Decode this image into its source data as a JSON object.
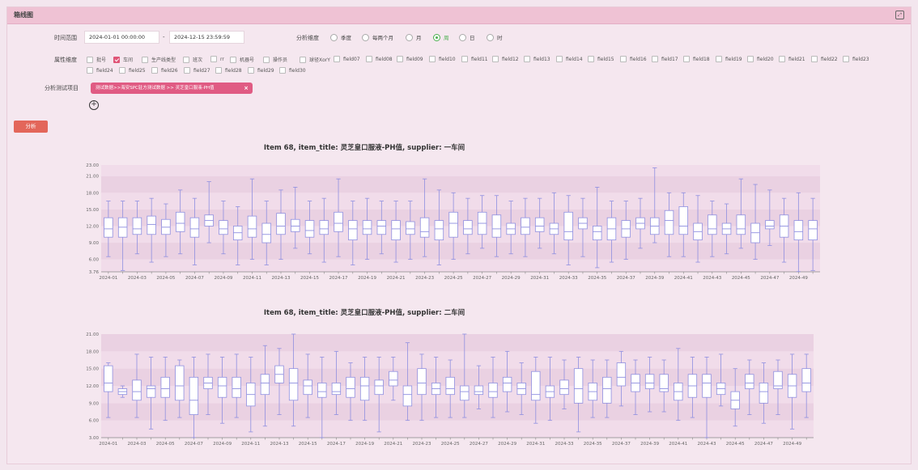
{
  "header": {
    "title": "箱线图",
    "expand_icon": "expand-icon"
  },
  "form": {
    "time_label": "时间范围",
    "start_time": "2024-01-01 00:00:00",
    "separator": "-",
    "end_time": "2024-12-15 23:59:59",
    "dimension_label": "分析维度",
    "dimensions": [
      "季度",
      "每两个月",
      "月",
      "周",
      "日",
      "时"
    ],
    "selected_dimension": "周",
    "attr_label": "属性维度",
    "attributes": [
      "批号",
      "车间",
      "生产线类型",
      "班次",
      "rr",
      "机器号",
      "操作员",
      "球径XorY",
      "field07",
      "field08",
      "field09",
      "field10",
      "field11",
      "field12",
      "field13",
      "field14",
      "field15",
      "field16",
      "field17",
      "field18",
      "field19",
      "field20",
      "field21",
      "field22",
      "field23",
      "field24",
      "field25",
      "field26",
      "field27",
      "field28",
      "field29",
      "field30"
    ],
    "checked_attributes": [
      "车间"
    ],
    "item_label": "分析测试项目",
    "item_tag": "测试数据>>海安SPC驻方测试数据 >> 灵芝皇口服液-PH值",
    "analyze_button": "分析"
  },
  "colors": {
    "accent": "#e05b83",
    "box_stroke": "#8f8fe0",
    "band_a": "#f1dcea",
    "band_b": "#ead1e2",
    "button": "#e3665a"
  },
  "chart_data": [
    {
      "type": "boxplot",
      "title": "Item 68, item_title: 灵芝皇口服液-PH值, supplier: 一车间",
      "y_ticks": [
        "3.76",
        "6.00",
        "9.00",
        "12.00",
        "15.00",
        "18.00",
        "21.00",
        "23.00"
      ],
      "ylim": [
        3.76,
        23.0
      ],
      "x_labels": [
        "2024-01",
        "2024-03",
        "2024-05",
        "2024-07",
        "2024-09",
        "2024-11",
        "2024-13",
        "2024-15",
        "2024-17",
        "2024-19",
        "2024-21",
        "2024-23",
        "2024-25",
        "2024-27",
        "2024-29",
        "2024-31",
        "2024-33",
        "2024-35",
        "2024-37",
        "2024-39",
        "2024-41",
        "2024-43",
        "2024-45",
        "2024-47",
        "2024-49"
      ],
      "boxes": [
        [
          6.5,
          10.0,
          11.5,
          13.5,
          16.5
        ],
        [
          4.0,
          10.0,
          11.8,
          13.5,
          16.5
        ],
        [
          7.0,
          10.5,
          11.5,
          13.5,
          16.5
        ],
        [
          5.5,
          10.5,
          12.3,
          13.8,
          17.0
        ],
        [
          6.5,
          10.5,
          11.8,
          13.2,
          16.0
        ],
        [
          7.0,
          11.0,
          12.5,
          14.5,
          18.5
        ],
        [
          5.0,
          10.0,
          11.5,
          13.5,
          17.0
        ],
        [
          9.0,
          12.0,
          13.0,
          14.0,
          20.0
        ],
        [
          7.0,
          10.5,
          11.5,
          13.0,
          16.5
        ],
        [
          5.0,
          9.5,
          10.8,
          12.0,
          15.5
        ],
        [
          6.0,
          10.0,
          11.5,
          13.8,
          20.5
        ],
        [
          5.0,
          9.0,
          10.5,
          12.5,
          16.5
        ],
        [
          6.0,
          10.5,
          12.0,
          14.3,
          18.5
        ],
        [
          8.0,
          11.0,
          12.0,
          13.2,
          19.0
        ],
        [
          7.0,
          10.0,
          11.2,
          13.0,
          16.5
        ],
        [
          5.5,
          10.5,
          11.5,
          13.0,
          17.0
        ],
        [
          6.5,
          11.0,
          12.5,
          14.5,
          20.5
        ],
        [
          5.0,
          9.5,
          11.5,
          13.0,
          16.5
        ],
        [
          6.0,
          10.5,
          11.5,
          13.0,
          17.0
        ],
        [
          7.0,
          10.5,
          12.0,
          13.0,
          16.5
        ],
        [
          5.5,
          9.5,
          11.5,
          13.0,
          16.5
        ],
        [
          6.0,
          10.5,
          11.5,
          12.8,
          16.5
        ],
        [
          6.5,
          10.0,
          11.0,
          13.5,
          20.5
        ],
        [
          5.0,
          9.5,
          11.5,
          13.0,
          18.5
        ],
        [
          6.0,
          10.0,
          12.5,
          14.5,
          18.0
        ],
        [
          7.0,
          10.5,
          11.5,
          13.0,
          17.0
        ],
        [
          8.0,
          10.5,
          12.5,
          14.5,
          17.5
        ],
        [
          6.5,
          10.0,
          11.5,
          14.0,
          17.5
        ],
        [
          7.0,
          10.5,
          11.5,
          12.5,
          16.5
        ],
        [
          6.5,
          10.5,
          11.8,
          13.5,
          17.0
        ],
        [
          8.0,
          11.0,
          12.0,
          13.5,
          17.0
        ],
        [
          7.0,
          10.5,
          11.5,
          12.5,
          18.0
        ],
        [
          5.0,
          9.5,
          11.0,
          14.5,
          17.5
        ],
        [
          6.5,
          11.5,
          12.5,
          13.5,
          17.0
        ],
        [
          4.5,
          9.5,
          11.0,
          12.0,
          19.0
        ],
        [
          5.5,
          9.5,
          11.5,
          13.5,
          16.5
        ],
        [
          6.0,
          10.0,
          11.5,
          13.0,
          16.5
        ],
        [
          8.0,
          11.5,
          12.5,
          13.5,
          17.0
        ],
        [
          9.0,
          10.5,
          12.0,
          13.5,
          22.5
        ],
        [
          6.5,
          10.5,
          13.0,
          14.8,
          18.0
        ],
        [
          6.5,
          10.5,
          12.0,
          15.5,
          18.0
        ],
        [
          5.5,
          9.5,
          11.0,
          12.5,
          17.5
        ],
        [
          6.5,
          10.5,
          11.5,
          14.0,
          16.5
        ],
        [
          7.0,
          10.5,
          11.5,
          12.5,
          16.0
        ],
        [
          8.0,
          10.5,
          11.5,
          14.0,
          20.5
        ],
        [
          6.0,
          9.0,
          10.8,
          12.5,
          19.5
        ],
        [
          8.5,
          11.5,
          12.0,
          13.0,
          18.5
        ],
        [
          5.5,
          10.0,
          12.0,
          14.0,
          17.0
        ],
        [
          3.8,
          9.5,
          11.0,
          13.0,
          18.0
        ],
        [
          4.0,
          9.5,
          11.5,
          13.0,
          17.0
        ]
      ]
    },
    {
      "type": "boxplot",
      "title": "Item 68, item_title: 灵芝皇口服液-PH值, supplier: 二车间",
      "y_ticks": [
        "3.00",
        "6.00",
        "9.00",
        "12.00",
        "15.00",
        "18.00",
        "21.00"
      ],
      "ylim": [
        3.0,
        21.0
      ],
      "x_labels": [
        "2024-01",
        "2024-03",
        "2024-05",
        "2024-07",
        "2024-09",
        "2024-11",
        "2024-13",
        "2024-15",
        "2024-17",
        "2024-19",
        "2024-21",
        "2024-23",
        "2024-25",
        "2024-27",
        "2024-29",
        "2024-31",
        "2024-33",
        "2024-35",
        "2024-37",
        "2024-39",
        "2024-41",
        "2024-43",
        "2024-45",
        "2024-47",
        "2024-49"
      ],
      "boxes": [
        [
          6.5,
          11.0,
          12.5,
          15.5,
          16.0
        ],
        [
          10.0,
          10.5,
          11.0,
          11.5,
          12.0
        ],
        [
          6.5,
          9.5,
          11.0,
          13.0,
          17.5
        ],
        [
          4.5,
          10.0,
          11.5,
          12.0,
          17.0
        ],
        [
          6.0,
          10.0,
          11.5,
          13.5,
          17.0
        ],
        [
          6.5,
          9.5,
          12.0,
          15.5,
          16.5
        ],
        [
          3.0,
          7.0,
          9.5,
          13.5,
          17.0
        ],
        [
          7.0,
          11.5,
          12.5,
          13.5,
          17.5
        ],
        [
          5.5,
          10.0,
          12.0,
          13.5,
          17.0
        ],
        [
          6.5,
          10.0,
          11.5,
          13.5,
          17.5
        ],
        [
          4.0,
          8.5,
          10.5,
          12.5,
          17.0
        ],
        [
          5.0,
          10.5,
          12.5,
          14.0,
          19.0
        ],
        [
          7.0,
          12.5,
          14.0,
          15.5,
          18.5
        ],
        [
          5.0,
          9.5,
          12.5,
          15.0,
          21.0
        ],
        [
          6.5,
          10.5,
          12.0,
          13.0,
          17.5
        ],
        [
          3.0,
          10.0,
          11.0,
          12.5,
          17.0
        ],
        [
          7.0,
          10.5,
          11.0,
          12.5,
          18.0
        ],
        [
          6.0,
          10.0,
          11.5,
          13.5,
          16.0
        ],
        [
          6.0,
          9.5,
          12.0,
          13.5,
          17.0
        ],
        [
          4.0,
          10.5,
          12.0,
          13.0,
          17.0
        ],
        [
          9.5,
          12.0,
          13.0,
          14.5,
          17.0
        ],
        [
          6.0,
          8.5,
          10.5,
          12.0,
          19.5
        ],
        [
          6.0,
          10.5,
          12.5,
          15.0,
          17.5
        ],
        [
          6.5,
          10.5,
          11.5,
          12.5,
          17.0
        ],
        [
          6.5,
          10.5,
          11.5,
          13.5,
          16.5
        ],
        [
          6.5,
          9.5,
          11.0,
          12.0,
          21.0
        ],
        [
          8.0,
          10.5,
          11.0,
          12.0,
          15.5
        ],
        [
          6.5,
          10.0,
          11.0,
          12.5,
          17.0
        ],
        [
          7.5,
          11.0,
          12.5,
          13.5,
          18.0
        ],
        [
          7.0,
          10.5,
          11.5,
          12.5,
          16.0
        ],
        [
          5.5,
          9.5,
          10.5,
          14.5,
          17.0
        ],
        [
          6.0,
          10.0,
          11.0,
          12.0,
          17.0
        ],
        [
          8.0,
          10.5,
          11.5,
          13.0,
          16.5
        ],
        [
          4.0,
          9.0,
          11.5,
          15.0,
          17.0
        ],
        [
          6.5,
          9.5,
          11.0,
          12.5,
          16.5
        ],
        [
          6.5,
          9.0,
          11.5,
          13.5,
          16.5
        ],
        [
          8.5,
          12.0,
          13.5,
          16.0,
          18.0
        ],
        [
          7.0,
          11.0,
          12.5,
          14.0,
          16.5
        ],
        [
          7.5,
          11.5,
          12.5,
          14.0,
          17.0
        ],
        [
          7.5,
          11.0,
          11.5,
          14.0,
          16.5
        ],
        [
          6.0,
          9.5,
          11.0,
          12.5,
          18.5
        ],
        [
          6.5,
          10.0,
          12.0,
          14.0,
          17.0
        ],
        [
          3.0,
          10.0,
          12.5,
          14.0,
          17.0
        ],
        [
          8.5,
          10.5,
          11.5,
          12.5,
          17.5
        ],
        [
          5.0,
          8.0,
          9.5,
          11.0,
          15.0
        ],
        [
          7.0,
          11.5,
          12.5,
          14.0,
          16.5
        ],
        [
          5.5,
          9.0,
          11.0,
          12.5,
          16.0
        ],
        [
          7.0,
          11.5,
          12.0,
          14.5,
          16.5
        ],
        [
          4.5,
          10.0,
          12.0,
          14.0,
          17.5
        ],
        [
          6.5,
          11.0,
          12.5,
          15.0,
          17.5
        ]
      ]
    }
  ]
}
